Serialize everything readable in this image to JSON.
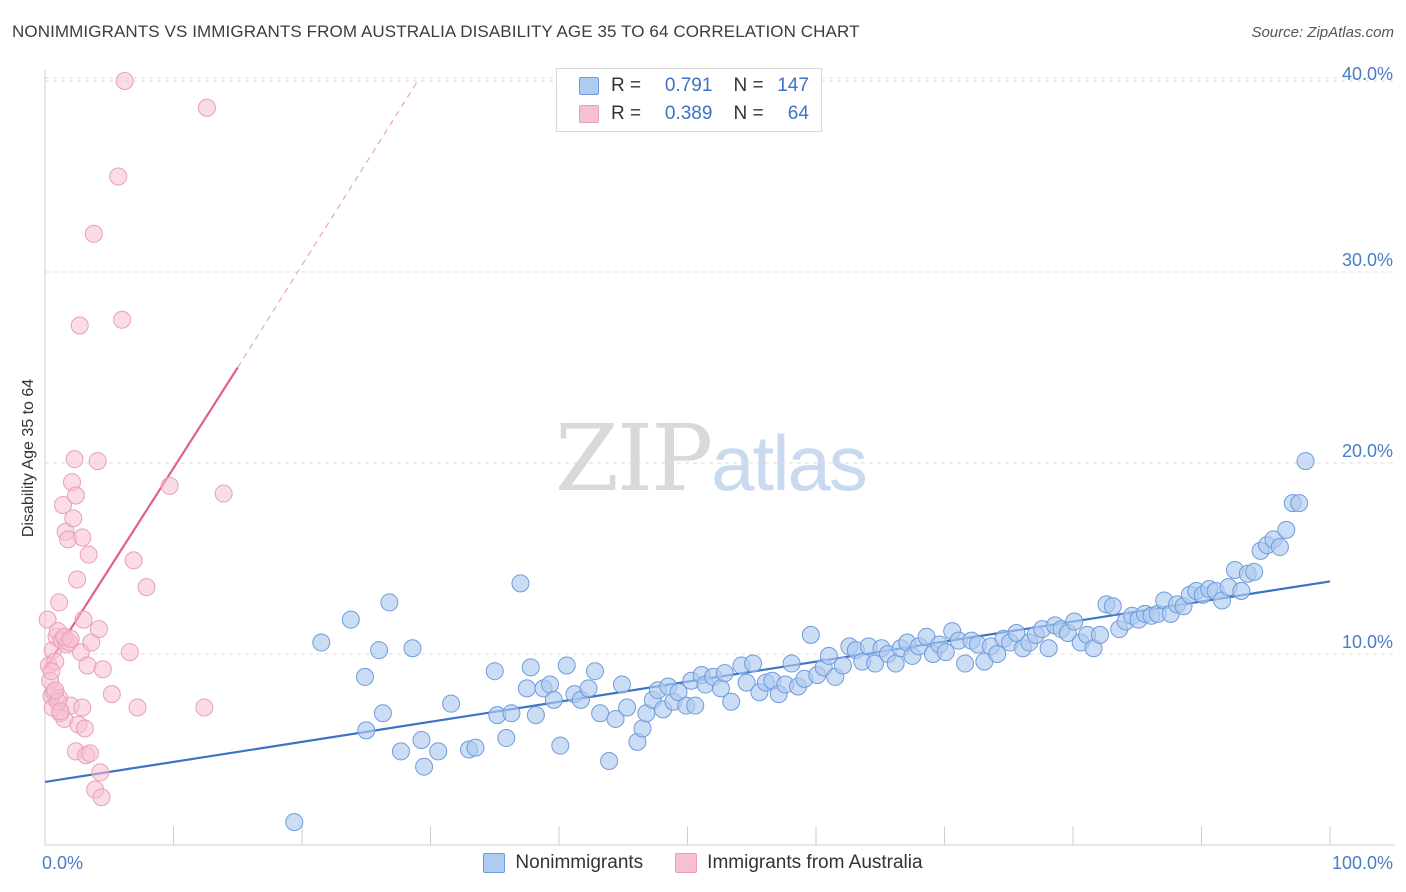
{
  "title": "NONIMMIGRANTS VS IMMIGRANTS FROM AUSTRALIA DISABILITY AGE 35 TO 64 CORRELATION CHART",
  "source": "Source: ZipAtlas.com",
  "watermark": {
    "zip": "ZIP",
    "atlas": "atlas"
  },
  "legend": {
    "rows": [
      {
        "r_label": "R =",
        "r_value": "0.791",
        "n_label": "N =",
        "n_value": "147"
      },
      {
        "r_label": "R =",
        "r_value": "0.389",
        "n_label": "N =",
        "n_value": "64"
      }
    ]
  },
  "bottom_legend": {
    "series1": "Nonimmigrants",
    "series2": "Immigrants from Australia"
  },
  "colors": {
    "blue": "#3b73c7",
    "blue_fill": "#aecbf0",
    "pink": "#e0608a",
    "pink_fill": "#f7bfd2",
    "axis_label": "#4a7cc7"
  },
  "chart_data": {
    "type": "scatter",
    "title": "NONIMMIGRANTS VS IMMIGRANTS FROM AUSTRALIA DISABILITY AGE 35 TO 64 CORRELATION CHART",
    "xlabel": "",
    "ylabel": "Disability Age 35 to 64",
    "xlim": [
      0,
      100
    ],
    "ylim": [
      0,
      42
    ],
    "x_tick_labels": [
      "0.0%",
      "100.0%"
    ],
    "y_ticks": [
      10,
      20,
      30,
      40
    ],
    "y_tick_labels": [
      "10.0%",
      "20.0%",
      "30.0%",
      "40.0%"
    ],
    "grid": true,
    "legend_position": "top-center",
    "series": [
      {
        "name": "Nonimmigrants",
        "r": 0.791,
        "n": 147,
        "trend": {
          "x0": 0,
          "y0": 3.3,
          "x1": 100,
          "y1": 13.8
        },
        "points": [
          [
            19.4,
            1.2
          ],
          [
            21.5,
            10.6
          ],
          [
            23.8,
            11.8
          ],
          [
            25.0,
            6.0
          ],
          [
            24.9,
            8.8
          ],
          [
            26.0,
            10.2
          ],
          [
            26.3,
            6.9
          ],
          [
            26.8,
            12.7
          ],
          [
            27.7,
            4.9
          ],
          [
            28.6,
            10.3
          ],
          [
            29.3,
            5.5
          ],
          [
            29.5,
            4.1
          ],
          [
            30.6,
            4.9
          ],
          [
            31.6,
            7.4
          ],
          [
            33.0,
            5.0
          ],
          [
            33.5,
            5.1
          ],
          [
            35.0,
            9.1
          ],
          [
            35.2,
            6.8
          ],
          [
            35.9,
            5.6
          ],
          [
            36.3,
            6.9
          ],
          [
            37.0,
            13.7
          ],
          [
            37.5,
            8.2
          ],
          [
            37.8,
            9.3
          ],
          [
            38.2,
            6.8
          ],
          [
            38.8,
            8.2
          ],
          [
            39.3,
            8.4
          ],
          [
            39.6,
            7.6
          ],
          [
            40.1,
            5.2
          ],
          [
            40.6,
            9.4
          ],
          [
            41.2,
            7.9
          ],
          [
            41.7,
            7.6
          ],
          [
            42.3,
            8.2
          ],
          [
            42.8,
            9.1
          ],
          [
            43.2,
            6.9
          ],
          [
            43.9,
            4.4
          ],
          [
            44.4,
            6.6
          ],
          [
            44.9,
            8.4
          ],
          [
            45.3,
            7.2
          ],
          [
            46.1,
            5.4
          ],
          [
            46.5,
            6.1
          ],
          [
            46.8,
            6.9
          ],
          [
            47.3,
            7.6
          ],
          [
            47.7,
            8.1
          ],
          [
            48.1,
            7.1
          ],
          [
            48.5,
            8.3
          ],
          [
            48.9,
            7.5
          ],
          [
            49.3,
            8.0
          ],
          [
            49.9,
            7.3
          ],
          [
            50.3,
            8.6
          ],
          [
            50.6,
            7.3
          ],
          [
            51.1,
            8.9
          ],
          [
            51.4,
            8.4
          ],
          [
            52.0,
            8.8
          ],
          [
            52.6,
            8.2
          ],
          [
            52.9,
            9.0
          ],
          [
            53.4,
            7.5
          ],
          [
            54.2,
            9.4
          ],
          [
            54.6,
            8.5
          ],
          [
            55.1,
            9.5
          ],
          [
            55.6,
            8.0
          ],
          [
            56.1,
            8.5
          ],
          [
            56.6,
            8.6
          ],
          [
            57.1,
            7.9
          ],
          [
            57.6,
            8.4
          ],
          [
            58.1,
            9.5
          ],
          [
            58.6,
            8.3
          ],
          [
            59.1,
            8.7
          ],
          [
            59.6,
            11.0
          ],
          [
            60.1,
            8.9
          ],
          [
            60.6,
            9.3
          ],
          [
            61.0,
            9.9
          ],
          [
            61.5,
            8.8
          ],
          [
            62.1,
            9.4
          ],
          [
            62.6,
            10.4
          ],
          [
            63.1,
            10.2
          ],
          [
            63.6,
            9.6
          ],
          [
            64.1,
            10.4
          ],
          [
            64.6,
            9.5
          ],
          [
            65.1,
            10.3
          ],
          [
            65.6,
            10.0
          ],
          [
            66.2,
            9.5
          ],
          [
            66.6,
            10.3
          ],
          [
            67.1,
            10.6
          ],
          [
            67.5,
            9.9
          ],
          [
            68.0,
            10.4
          ],
          [
            68.6,
            10.9
          ],
          [
            69.1,
            10.0
          ],
          [
            69.6,
            10.5
          ],
          [
            70.1,
            10.1
          ],
          [
            70.6,
            11.2
          ],
          [
            71.1,
            10.7
          ],
          [
            71.6,
            9.5
          ],
          [
            72.1,
            10.7
          ],
          [
            72.6,
            10.5
          ],
          [
            73.1,
            9.6
          ],
          [
            73.6,
            10.4
          ],
          [
            74.1,
            10.0
          ],
          [
            74.6,
            10.8
          ],
          [
            75.1,
            10.6
          ],
          [
            75.6,
            11.1
          ],
          [
            76.1,
            10.3
          ],
          [
            76.6,
            10.6
          ],
          [
            77.1,
            11.0
          ],
          [
            77.6,
            11.3
          ],
          [
            78.1,
            10.3
          ],
          [
            78.6,
            11.5
          ],
          [
            79.1,
            11.3
          ],
          [
            79.6,
            11.1
          ],
          [
            80.1,
            11.7
          ],
          [
            80.6,
            10.6
          ],
          [
            81.1,
            11.0
          ],
          [
            81.6,
            10.3
          ],
          [
            82.1,
            11.0
          ],
          [
            82.6,
            12.6
          ],
          [
            83.1,
            12.5
          ],
          [
            83.6,
            11.3
          ],
          [
            84.1,
            11.7
          ],
          [
            84.6,
            12.0
          ],
          [
            85.1,
            11.8
          ],
          [
            85.6,
            12.1
          ],
          [
            86.1,
            12.0
          ],
          [
            86.6,
            12.1
          ],
          [
            87.1,
            12.8
          ],
          [
            87.6,
            12.1
          ],
          [
            88.1,
            12.6
          ],
          [
            88.6,
            12.5
          ],
          [
            89.1,
            13.1
          ],
          [
            89.6,
            13.3
          ],
          [
            90.1,
            13.1
          ],
          [
            90.6,
            13.4
          ],
          [
            91.1,
            13.3
          ],
          [
            91.6,
            12.8
          ],
          [
            92.1,
            13.5
          ],
          [
            92.6,
            14.4
          ],
          [
            93.1,
            13.3
          ],
          [
            93.6,
            14.2
          ],
          [
            94.1,
            14.3
          ],
          [
            94.6,
            15.4
          ],
          [
            95.1,
            15.7
          ],
          [
            95.6,
            16.0
          ],
          [
            96.1,
            15.6
          ],
          [
            96.6,
            16.5
          ],
          [
            97.1,
            17.9
          ],
          [
            97.6,
            17.9
          ],
          [
            98.1,
            20.1
          ]
        ]
      },
      {
        "name": "Immigrants from Australia",
        "r": 0.389,
        "n": 64,
        "trend": {
          "x0": 0,
          "y0": 9.2,
          "x1": 15,
          "y1": 25.0
        },
        "trend_dashed": {
          "x0": 15,
          "y0": 25.0,
          "x1": 29,
          "y1": 40.0
        },
        "points": [
          [
            0.2,
            11.8
          ],
          [
            0.3,
            9.4
          ],
          [
            0.4,
            8.6
          ],
          [
            0.5,
            7.8
          ],
          [
            0.6,
            7.2
          ],
          [
            0.6,
            10.2
          ],
          [
            0.7,
            8.0
          ],
          [
            0.8,
            9.6
          ],
          [
            0.9,
            10.9
          ],
          [
            1.0,
            11.2
          ],
          [
            1.1,
            12.7
          ],
          [
            1.1,
            7.7
          ],
          [
            1.2,
            6.9
          ],
          [
            1.3,
            10.7
          ],
          [
            1.4,
            17.8
          ],
          [
            1.5,
            6.6
          ],
          [
            1.6,
            16.4
          ],
          [
            1.7,
            10.5
          ],
          [
            1.8,
            16.0
          ],
          [
            1.9,
            10.6
          ],
          [
            2.0,
            7.3
          ],
          [
            2.1,
            19.0
          ],
          [
            2.2,
            17.1
          ],
          [
            2.3,
            20.2
          ],
          [
            2.4,
            18.3
          ],
          [
            2.4,
            4.9
          ],
          [
            2.5,
            13.9
          ],
          [
            2.6,
            6.3
          ],
          [
            2.7,
            27.2
          ],
          [
            2.8,
            10.1
          ],
          [
            2.9,
            16.1
          ],
          [
            3.0,
            11.8
          ],
          [
            3.1,
            6.1
          ],
          [
            3.2,
            4.7
          ],
          [
            3.3,
            9.4
          ],
          [
            3.4,
            15.2
          ],
          [
            3.5,
            4.8
          ],
          [
            3.6,
            10.6
          ],
          [
            3.8,
            32.0
          ],
          [
            3.9,
            2.9
          ],
          [
            4.1,
            20.1
          ],
          [
            4.2,
            11.3
          ],
          [
            4.3,
            3.8
          ],
          [
            4.4,
            2.5
          ],
          [
            4.5,
            9.2
          ],
          [
            5.2,
            7.9
          ],
          [
            5.7,
            35.0
          ],
          [
            6.0,
            27.5
          ],
          [
            6.2,
            40.0
          ],
          [
            6.6,
            10.1
          ],
          [
            6.9,
            14.9
          ],
          [
            7.2,
            7.2
          ],
          [
            7.9,
            13.5
          ],
          [
            9.7,
            18.8
          ],
          [
            12.4,
            7.2
          ],
          [
            12.6,
            38.6
          ],
          [
            13.9,
            18.4
          ],
          [
            1.5,
            10.9
          ],
          [
            1.0,
            7.5
          ],
          [
            0.8,
            8.1
          ],
          [
            2.0,
            10.8
          ],
          [
            1.2,
            7.0
          ],
          [
            0.5,
            9.1
          ],
          [
            2.9,
            7.2
          ]
        ]
      }
    ]
  }
}
